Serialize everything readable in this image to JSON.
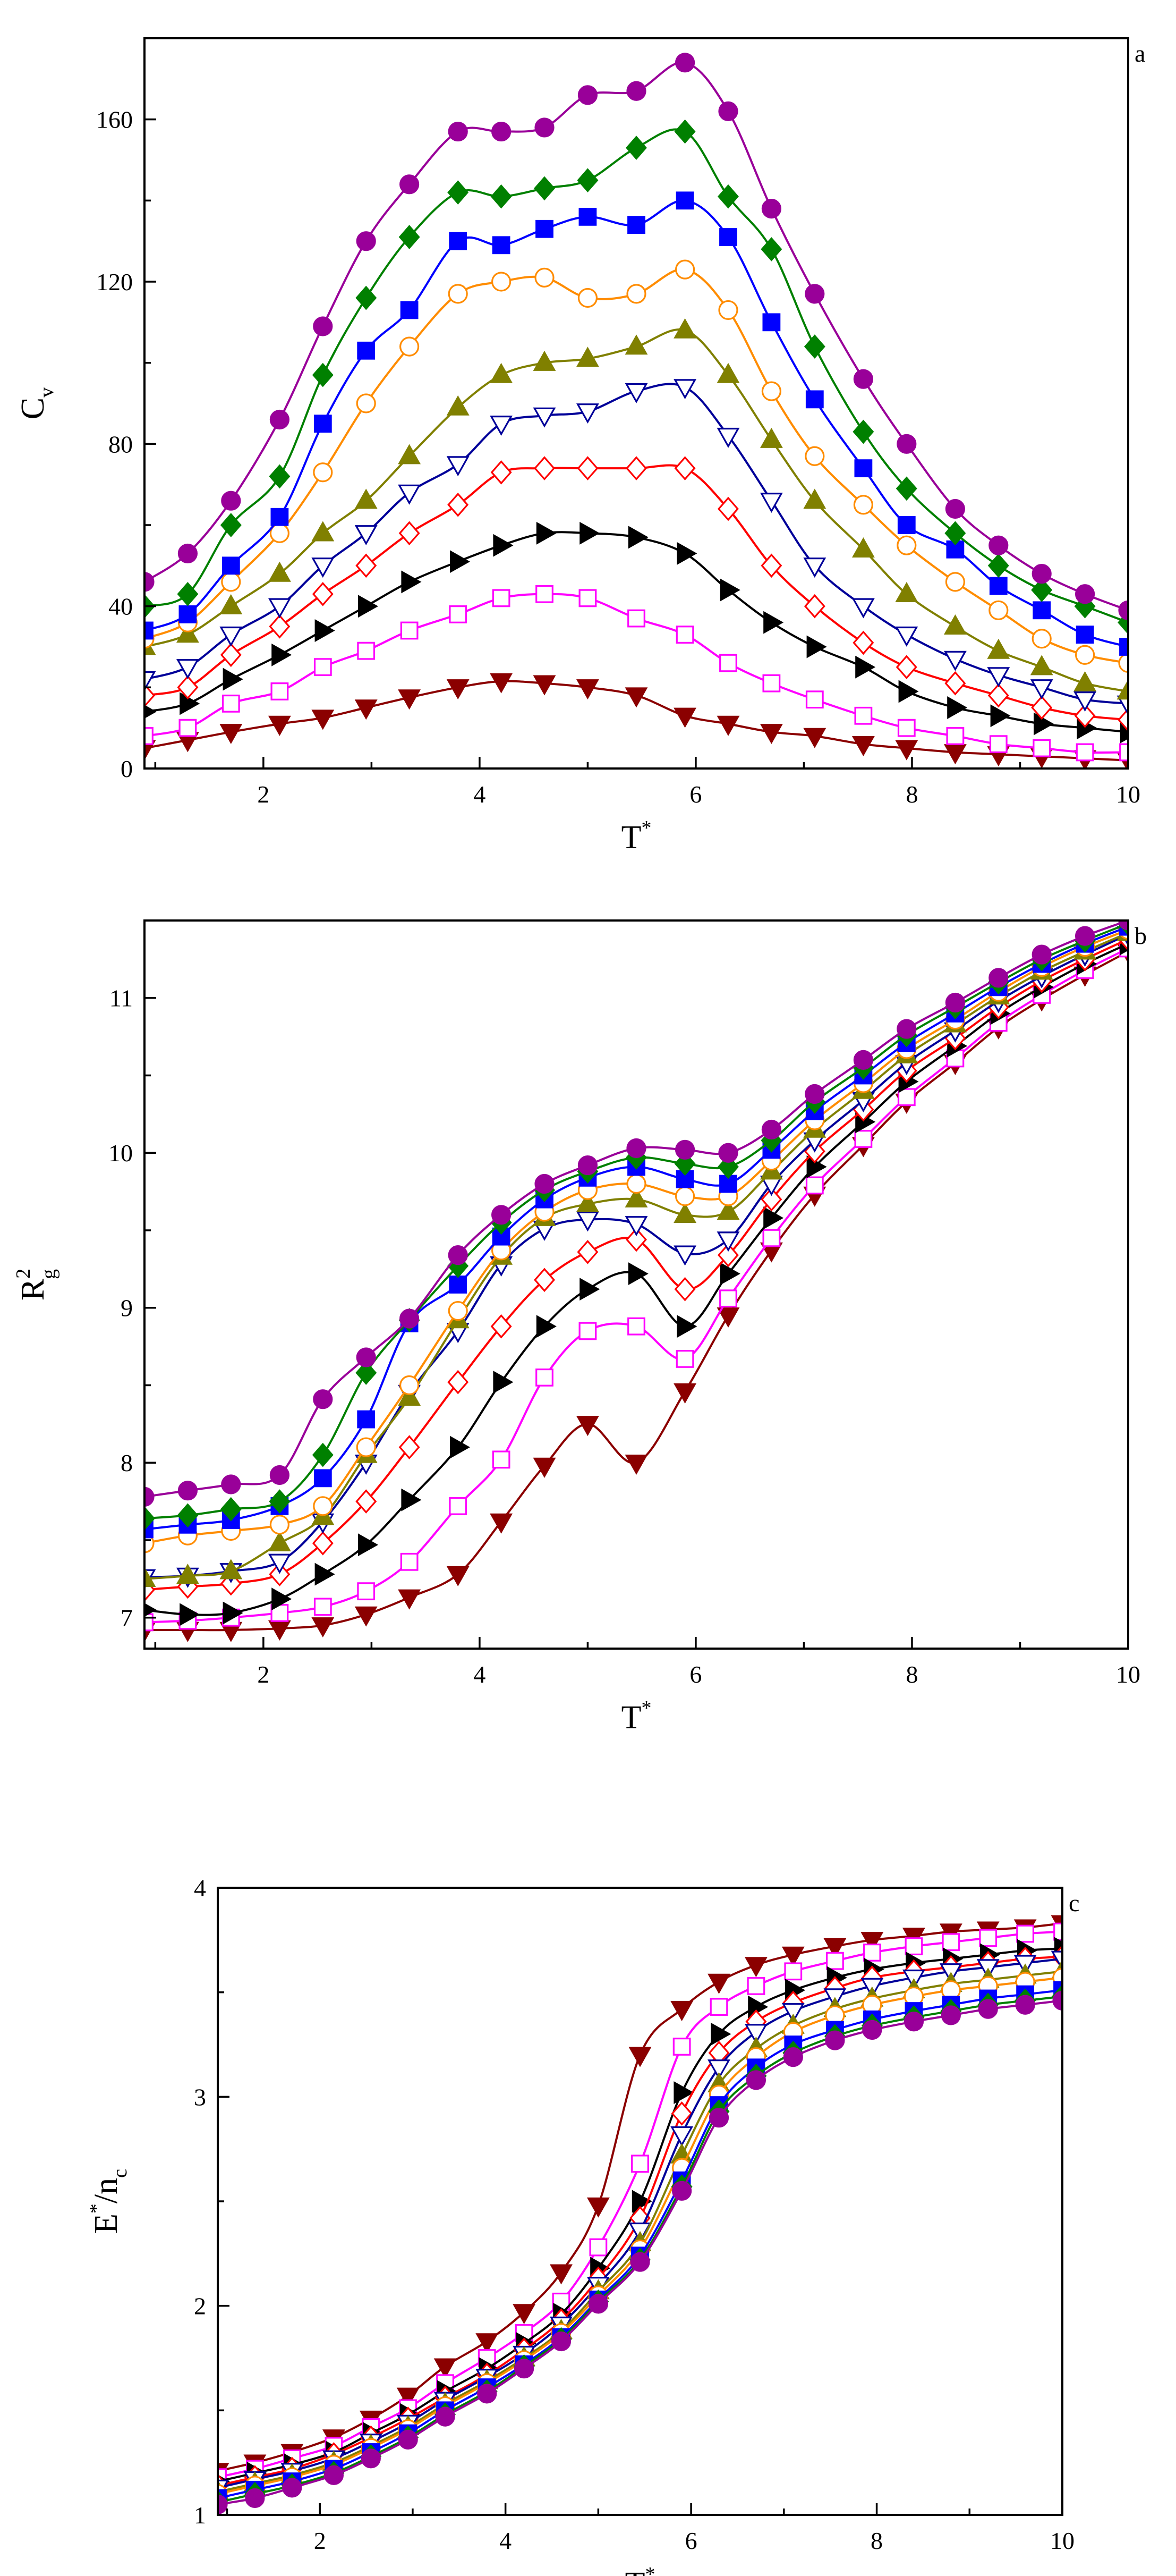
{
  "chart_data": [
    {
      "type": "line",
      "panel_label": "a",
      "xlabel": "T",
      "xlabel_sup": "*",
      "ylabel": "C",
      "ylabel_sub": "v",
      "xlim": [
        0.9,
        10
      ],
      "ylim": [
        0,
        180
      ],
      "xticks": [
        "2",
        "4",
        "6",
        "8",
        "10"
      ],
      "yticks": [
        "0",
        "40",
        "80",
        "120",
        "160"
      ],
      "marker_x": [
        0.9,
        1.3,
        1.7,
        2.15,
        2.55,
        2.95,
        3.35,
        3.8,
        4.2,
        4.6,
        5.0,
        5.45,
        5.9,
        6.3,
        6.7,
        7.1,
        7.55,
        7.95,
        8.4,
        8.8,
        9.2,
        9.6,
        10.0
      ],
      "series": [
        {
          "name": "s1",
          "color": "#8b0000",
          "marker": "triangle-down",
          "filled": true,
          "values": [
            5,
            7,
            9,
            11,
            12.5,
            15,
            17.5,
            20,
            21.5,
            21,
            20,
            18,
            13,
            11,
            9,
            8,
            6,
            5,
            4,
            3.5,
            3,
            2.5,
            2
          ]
        },
        {
          "name": "s2",
          "color": "#ff00ff",
          "marker": "square",
          "filled": false,
          "values": [
            8,
            10,
            16,
            19,
            25,
            29,
            34,
            38,
            42,
            43,
            42,
            37,
            33,
            26,
            21,
            17,
            13,
            10,
            8,
            6,
            5,
            4,
            4
          ]
        },
        {
          "name": "s3",
          "color": "#000000",
          "marker": "triangle-right",
          "filled": true,
          "values": [
            14,
            16,
            22,
            28,
            34,
            40,
            46,
            51,
            55,
            58,
            58,
            57,
            53,
            44,
            36,
            30,
            25,
            19,
            15,
            13,
            11,
            10,
            9
          ]
        },
        {
          "name": "s4",
          "color": "#ff0000",
          "marker": "diamond",
          "filled": false,
          "values": [
            18,
            20,
            28,
            35,
            43,
            50,
            58,
            65,
            73,
            74,
            74,
            74,
            74,
            64,
            50,
            40,
            31,
            25,
            21,
            18,
            15,
            13,
            12
          ]
        },
        {
          "name": "s5",
          "color": "#000099",
          "marker": "triangle-down",
          "filled": false,
          "values": [
            22,
            25,
            33,
            40,
            50,
            58,
            68,
            75,
            85,
            87,
            88,
            93,
            94,
            82,
            66,
            50,
            40,
            33,
            27,
            23,
            20,
            17,
            16
          ]
        },
        {
          "name": "s6",
          "color": "#808000",
          "marker": "triangle-up",
          "filled": true,
          "values": [
            30,
            33,
            40,
            48,
            58,
            66,
            77,
            89,
            97,
            100,
            101,
            104,
            108,
            97,
            81,
            66,
            54,
            43,
            35,
            29,
            25,
            21,
            19
          ]
        },
        {
          "name": "s7",
          "color": "#ff8c00",
          "marker": "circle",
          "filled": false,
          "values": [
            32,
            36,
            46,
            58,
            73,
            90,
            104,
            117,
            120,
            121,
            116,
            117,
            123,
            113,
            93,
            77,
            65,
            55,
            46,
            39,
            32,
            28,
            26
          ]
        },
        {
          "name": "s8",
          "color": "#0000ff",
          "marker": "square",
          "filled": true,
          "values": [
            34,
            38,
            50,
            62,
            85,
            103,
            113,
            130,
            129,
            133,
            136,
            134,
            140,
            131,
            110,
            91,
            74,
            60,
            54,
            45,
            39,
            33,
            30
          ]
        },
        {
          "name": "s9",
          "color": "#008000",
          "marker": "diamond",
          "filled": true,
          "values": [
            40,
            43,
            60,
            72,
            97,
            116,
            131,
            142,
            141,
            143,
            145,
            153,
            157,
            141,
            128,
            104,
            83,
            69,
            58,
            50,
            44,
            40,
            36
          ]
        },
        {
          "name": "s10",
          "color": "#990099",
          "marker": "circle",
          "filled": true,
          "values": [
            46,
            53,
            66,
            86,
            109,
            130,
            144,
            157,
            157,
            158,
            166,
            167,
            174,
            162,
            138,
            117,
            96,
            80,
            64,
            55,
            48,
            43,
            39
          ]
        }
      ]
    },
    {
      "type": "line",
      "panel_label": "b",
      "xlabel": "T",
      "xlabel_sup": "*",
      "ylabel": "R",
      "ylabel_sup": "2",
      "ylabel_sub": "g",
      "xlim": [
        0.9,
        10
      ],
      "ylim": [
        6.8,
        11.5
      ],
      "xticks": [
        "2",
        "4",
        "6",
        "8",
        "10"
      ],
      "yticks": [
        "7",
        "8",
        "9",
        "10",
        "11"
      ],
      "marker_x": [
        0.9,
        1.3,
        1.7,
        2.15,
        2.55,
        2.95,
        3.35,
        3.8,
        4.2,
        4.6,
        5.0,
        5.45,
        5.9,
        6.3,
        6.7,
        7.1,
        7.55,
        7.95,
        8.4,
        8.8,
        9.2,
        9.6,
        10.0
      ],
      "series": [
        {
          "name": "s1",
          "color": "#8b0000",
          "marker": "triangle-down",
          "filled": true,
          "values": [
            6.92,
            6.92,
            6.92,
            6.93,
            6.95,
            7.02,
            7.13,
            7.28,
            7.62,
            7.98,
            8.25,
            8.0,
            8.46,
            8.95,
            9.37,
            9.73,
            10.05,
            10.33,
            10.58,
            10.81,
            10.99,
            11.15,
            11.3
          ]
        },
        {
          "name": "s2",
          "color": "#ff00ff",
          "marker": "square",
          "filled": false,
          "values": [
            6.97,
            6.98,
            7.0,
            7.03,
            7.07,
            7.17,
            7.36,
            7.72,
            8.02,
            8.55,
            8.85,
            8.88,
            8.67,
            9.06,
            9.45,
            9.79,
            10.09,
            10.36,
            10.61,
            10.84,
            11.02,
            11.18,
            11.32
          ]
        },
        {
          "name": "s3",
          "color": "#000000",
          "marker": "triangle-right",
          "filled": true,
          "values": [
            7.05,
            7.02,
            7.03,
            7.12,
            7.28,
            7.47,
            7.76,
            8.1,
            8.52,
            8.88,
            9.12,
            9.22,
            8.88,
            9.22,
            9.58,
            9.91,
            10.2,
            10.46,
            10.69,
            10.9,
            11.07,
            11.22,
            11.35
          ]
        },
        {
          "name": "s4",
          "color": "#ff0000",
          "marker": "diamond",
          "filled": false,
          "values": [
            7.18,
            7.2,
            7.22,
            7.28,
            7.48,
            7.75,
            8.1,
            8.52,
            8.88,
            9.18,
            9.36,
            9.44,
            9.12,
            9.34,
            9.7,
            10.01,
            10.28,
            10.53,
            10.74,
            10.94,
            11.11,
            11.25,
            11.38
          ]
        },
        {
          "name": "s5",
          "color": "#000099",
          "marker": "triangle-down",
          "filled": false,
          "values": [
            7.26,
            7.27,
            7.3,
            7.36,
            7.62,
            8.0,
            8.45,
            8.85,
            9.28,
            9.51,
            9.57,
            9.54,
            9.35,
            9.44,
            9.8,
            10.08,
            10.34,
            10.58,
            10.79,
            10.98,
            11.14,
            11.28,
            11.41
          ]
        },
        {
          "name": "s6",
          "color": "#808000",
          "marker": "triangle-up",
          "filled": true,
          "values": [
            7.25,
            7.27,
            7.3,
            7.48,
            7.65,
            8.05,
            8.42,
            8.92,
            9.33,
            9.58,
            9.67,
            9.7,
            9.6,
            9.62,
            9.88,
            10.15,
            10.4,
            10.63,
            10.83,
            11.01,
            11.17,
            11.3,
            11.42
          ]
        },
        {
          "name": "s7",
          "color": "#ff8c00",
          "marker": "circle",
          "filled": false,
          "values": [
            7.48,
            7.53,
            7.56,
            7.6,
            7.72,
            8.1,
            8.5,
            8.98,
            9.37,
            9.62,
            9.76,
            9.8,
            9.72,
            9.72,
            9.95,
            10.21,
            10.45,
            10.67,
            10.86,
            11.04,
            11.2,
            11.33,
            11.44
          ]
        },
        {
          "name": "s8",
          "color": "#0000ff",
          "marker": "square",
          "filled": true,
          "values": [
            7.57,
            7.6,
            7.63,
            7.72,
            7.9,
            8.28,
            8.9,
            9.15,
            9.46,
            9.7,
            9.84,
            9.91,
            9.83,
            9.8,
            10.02,
            10.27,
            10.5,
            10.71,
            10.9,
            11.07,
            11.22,
            11.35,
            11.46
          ]
        },
        {
          "name": "s9",
          "color": "#008000",
          "marker": "diamond",
          "filled": true,
          "values": [
            7.64,
            7.66,
            7.7,
            7.75,
            8.05,
            8.58,
            8.92,
            9.27,
            9.55,
            9.76,
            9.88,
            9.97,
            9.93,
            9.91,
            10.08,
            10.33,
            10.55,
            10.76,
            10.94,
            11.1,
            11.25,
            11.37,
            11.48
          ]
        },
        {
          "name": "s10",
          "color": "#990099",
          "marker": "circle",
          "filled": true,
          "values": [
            7.78,
            7.82,
            7.86,
            7.92,
            8.41,
            8.68,
            8.93,
            9.34,
            9.6,
            9.8,
            9.92,
            10.03,
            10.02,
            10.0,
            10.15,
            10.38,
            10.6,
            10.8,
            10.97,
            11.13,
            11.28,
            11.4,
            11.5
          ]
        }
      ]
    },
    {
      "type": "line",
      "panel_label": "c",
      "xlabel": "T",
      "xlabel_sup": "*",
      "ylabel": "E",
      "ylabel_sup": "*",
      "ylabel_tail": "/n",
      "ylabel_sub": "c",
      "xlim": [
        0.9,
        10
      ],
      "ylim": [
        1,
        4
      ],
      "xticks": [
        "2",
        "4",
        "6",
        "8",
        "10"
      ],
      "yticks": [
        "1",
        "2",
        "3",
        "4"
      ],
      "marker_x": [
        0.9,
        1.3,
        1.7,
        2.15,
        2.55,
        2.95,
        3.35,
        3.8,
        4.2,
        4.6,
        5.0,
        5.45,
        5.9,
        6.3,
        6.7,
        7.1,
        7.55,
        7.95,
        8.4,
        8.8,
        9.2,
        9.6,
        10.0
      ],
      "series": [
        {
          "name": "s1",
          "color": "#8b0000",
          "marker": "triangle-down",
          "filled": true,
          "values": [
            1.21,
            1.25,
            1.3,
            1.37,
            1.46,
            1.57,
            1.71,
            1.83,
            1.97,
            2.16,
            2.48,
            3.2,
            3.42,
            3.55,
            3.63,
            3.68,
            3.72,
            3.75,
            3.77,
            3.79,
            3.8,
            3.81,
            3.83
          ]
        },
        {
          "name": "s2",
          "color": "#ff00ff",
          "marker": "square",
          "filled": false,
          "values": [
            1.18,
            1.22,
            1.27,
            1.33,
            1.42,
            1.51,
            1.63,
            1.75,
            1.87,
            2.02,
            2.28,
            2.68,
            3.24,
            3.43,
            3.53,
            3.6,
            3.65,
            3.69,
            3.72,
            3.74,
            3.76,
            3.78,
            3.79
          ]
        },
        {
          "name": "s3",
          "color": "#000000",
          "marker": "triangle-right",
          "filled": true,
          "values": [
            1.16,
            1.2,
            1.24,
            1.3,
            1.39,
            1.48,
            1.59,
            1.7,
            1.82,
            1.96,
            2.18,
            2.5,
            3.02,
            3.3,
            3.43,
            3.51,
            3.57,
            3.61,
            3.64,
            3.66,
            3.68,
            3.7,
            3.71
          ]
        },
        {
          "name": "s4",
          "color": "#ff0000",
          "marker": "diamond",
          "filled": false,
          "values": [
            1.14,
            1.18,
            1.22,
            1.29,
            1.37,
            1.46,
            1.56,
            1.67,
            1.79,
            1.93,
            2.13,
            2.42,
            2.92,
            3.21,
            3.36,
            3.45,
            3.52,
            3.57,
            3.6,
            3.62,
            3.64,
            3.66,
            3.67
          ]
        },
        {
          "name": "s5",
          "color": "#000099",
          "marker": "triangle-down",
          "filled": false,
          "values": [
            1.13,
            1.17,
            1.21,
            1.27,
            1.35,
            1.44,
            1.55,
            1.66,
            1.77,
            1.91,
            2.1,
            2.36,
            2.82,
            3.14,
            3.31,
            3.41,
            3.48,
            3.53,
            3.57,
            3.6,
            3.62,
            3.64,
            3.66
          ]
        },
        {
          "name": "s6",
          "color": "#808000",
          "marker": "triangle-up",
          "filled": true,
          "values": [
            1.11,
            1.15,
            1.19,
            1.25,
            1.33,
            1.42,
            1.53,
            1.64,
            1.75,
            1.88,
            2.07,
            2.3,
            2.72,
            3.06,
            3.23,
            3.34,
            3.42,
            3.47,
            3.51,
            3.54,
            3.56,
            3.58,
            3.6
          ]
        },
        {
          "name": "s7",
          "color": "#ff8c00",
          "marker": "circle",
          "filled": false,
          "values": [
            1.1,
            1.14,
            1.18,
            1.24,
            1.32,
            1.41,
            1.52,
            1.63,
            1.74,
            1.87,
            2.05,
            2.27,
            2.66,
            3.01,
            3.19,
            3.31,
            3.39,
            3.44,
            3.48,
            3.51,
            3.53,
            3.55,
            3.57
          ]
        },
        {
          "name": "s8",
          "color": "#0000ff",
          "marker": "square",
          "filled": true,
          "values": [
            1.08,
            1.12,
            1.16,
            1.22,
            1.3,
            1.39,
            1.5,
            1.61,
            1.72,
            1.85,
            2.03,
            2.24,
            2.6,
            2.96,
            3.14,
            3.25,
            3.32,
            3.37,
            3.41,
            3.44,
            3.47,
            3.49,
            3.51
          ]
        },
        {
          "name": "s9",
          "color": "#008000",
          "marker": "diamond",
          "filled": true,
          "values": [
            1.06,
            1.1,
            1.14,
            1.2,
            1.28,
            1.37,
            1.48,
            1.59,
            1.71,
            1.84,
            2.02,
            2.22,
            2.57,
            2.93,
            3.1,
            3.21,
            3.29,
            3.34,
            3.38,
            3.41,
            3.44,
            3.46,
            3.48
          ]
        },
        {
          "name": "s10",
          "color": "#990099",
          "marker": "circle",
          "filled": true,
          "values": [
            1.05,
            1.08,
            1.13,
            1.19,
            1.27,
            1.36,
            1.47,
            1.58,
            1.7,
            1.83,
            2.01,
            2.21,
            2.55,
            2.9,
            3.08,
            3.19,
            3.27,
            3.32,
            3.36,
            3.39,
            3.42,
            3.44,
            3.46
          ]
        }
      ]
    }
  ]
}
